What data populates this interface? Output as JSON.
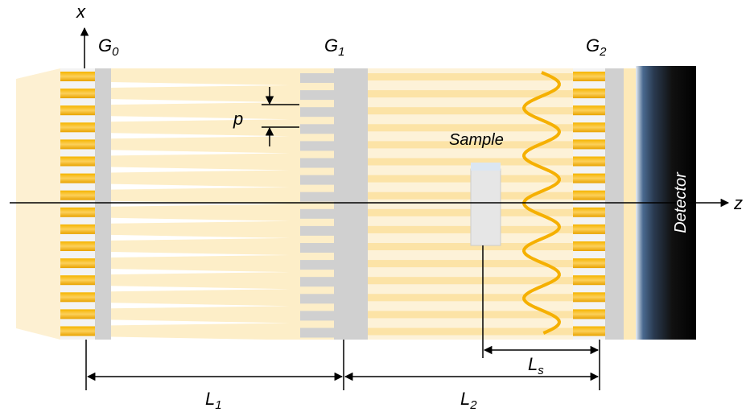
{
  "axes": {
    "x": "x",
    "z": "z"
  },
  "gratings": [
    {
      "symbol": "G",
      "subscript": "0"
    },
    {
      "symbol": "G",
      "subscript": "1"
    },
    {
      "symbol": "G",
      "subscript": "2"
    }
  ],
  "period": "p",
  "sample": "Sample",
  "detector": "Detector",
  "distances": [
    {
      "symbol": "L",
      "subscript": "1"
    },
    {
      "symbol": "L",
      "subscript": "2"
    },
    {
      "symbol": "L",
      "subscript": "s"
    }
  ]
}
